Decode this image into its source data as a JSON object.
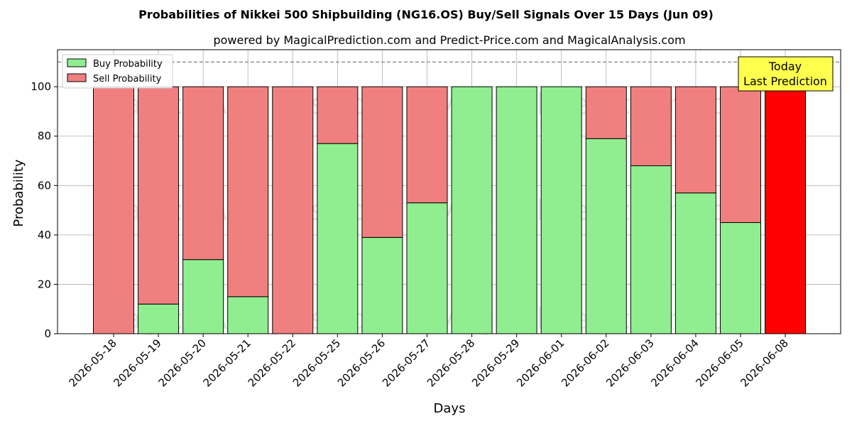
{
  "chart_data": {
    "type": "bar",
    "title": "Probabilities of Nikkei 500 Shipbuilding (NG16.OS) Buy/Sell Signals Over 15 Days (Jun 09)",
    "subtitle": "powered by MagicalPrediction.com and Predict-Price.com and MagicalAnalysis.com",
    "xlabel": "Days",
    "ylabel": "Probability",
    "ylim": [
      0,
      115
    ],
    "yticks": [
      0,
      20,
      40,
      60,
      80,
      100
    ],
    "categories": [
      "2026-05-18",
      "2026-05-19",
      "2026-05-20",
      "2026-05-21",
      "2026-05-22",
      "2026-05-25",
      "2026-05-26",
      "2026-05-27",
      "2026-05-28",
      "2026-05-29",
      "2026-06-01",
      "2026-06-02",
      "2026-06-03",
      "2026-06-04",
      "2026-06-05",
      "2026-06-08"
    ],
    "series": [
      {
        "name": "Buy Probability",
        "color": "#90ee90",
        "values": [
          0,
          12,
          30,
          15,
          0,
          77,
          39,
          53,
          100,
          100,
          100,
          79,
          68,
          57,
          45,
          0
        ]
      },
      {
        "name": "Sell Probability",
        "color": "#f08080",
        "values": [
          100,
          88,
          70,
          85,
          100,
          23,
          61,
          47,
          0,
          0,
          0,
          21,
          32,
          43,
          55,
          100
        ]
      }
    ],
    "highlight": {
      "category": "2026-06-08",
      "color": "#ff0000"
    },
    "reference_line": {
      "y": 110,
      "style": "dashed",
      "color": "#808080"
    },
    "legend": {
      "position": "top-left"
    },
    "grid": true,
    "annotation": {
      "lines": [
        "Today",
        "Last Prediction"
      ],
      "background": "#ffff4d"
    },
    "watermarks": [
      "MagicalAnalysis.com",
      "MagicalPrediction.com"
    ]
  }
}
